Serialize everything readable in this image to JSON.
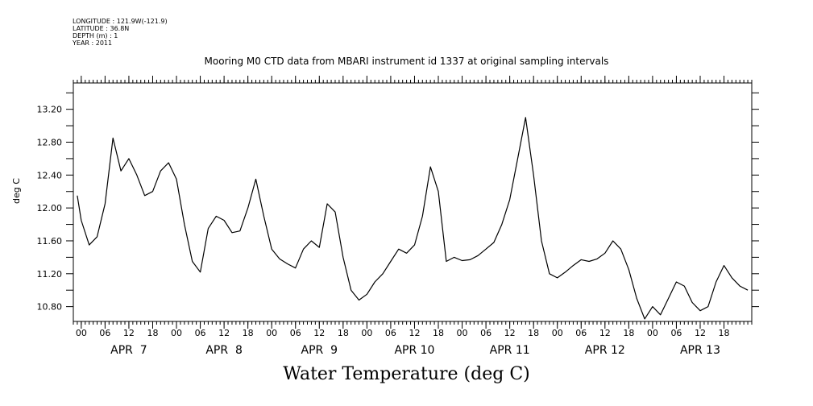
{
  "header": {
    "longitude": "LONGITUDE : 121.9W(-121.9)",
    "latitude": "LATITUDE : 36.8N",
    "depth": "DEPTH (m) : 1",
    "year": "YEAR : 2011"
  },
  "chart_data": {
    "type": "line",
    "title": "Mooring M0 CTD data from MBARI instrument id 1337 at original sampling intervals",
    "xlabel": "Water Temperature (deg C)",
    "ylabel": "deg C",
    "ylim": [
      10.62,
      13.52
    ],
    "yticks": [
      "10.80",
      "11.20",
      "11.60",
      "12.00",
      "12.40",
      "12.80",
      "13.20"
    ],
    "hour_ticks": [
      "00",
      "06",
      "12",
      "18",
      "00",
      "06",
      "12",
      "18",
      "00",
      "06",
      "12",
      "18",
      "00",
      "06",
      "12",
      "18",
      "00",
      "06",
      "12",
      "18",
      "00",
      "06",
      "12",
      "18",
      "00",
      "06",
      "12",
      "18"
    ],
    "day_labels": [
      "APR  7",
      "APR  8",
      "APR  9",
      "APR 10",
      "APR 11",
      "APR 12",
      "APR 13"
    ],
    "x_unit": "hours since 2011-04-07 00:00",
    "series": [
      {
        "x": [
          -1,
          0,
          2,
          4,
          6,
          8,
          10,
          12,
          14,
          16,
          18,
          20,
          22,
          24,
          26,
          28,
          30,
          32,
          34,
          36,
          38,
          40,
          42,
          44,
          46,
          48,
          50,
          52,
          54,
          56,
          58,
          60,
          62,
          64,
          66,
          68,
          70,
          72,
          74,
          76,
          78,
          80,
          82,
          84,
          86,
          88,
          90,
          92,
          94,
          96,
          98,
          100,
          102,
          104,
          106,
          108,
          110,
          112,
          114,
          116,
          118,
          120,
          122,
          124,
          126,
          128,
          130,
          132,
          134,
          136,
          138,
          140,
          142,
          144,
          146,
          148,
          150,
          152,
          154,
          156,
          158,
          160,
          162,
          164,
          166,
          168
        ],
        "y": [
          12.15,
          11.85,
          11.55,
          11.65,
          12.05,
          12.85,
          12.45,
          12.6,
          12.4,
          12.15,
          12.2,
          12.45,
          12.55,
          12.35,
          11.8,
          11.35,
          11.22,
          11.75,
          11.9,
          11.85,
          11.7,
          11.72,
          12.0,
          12.35,
          11.9,
          11.5,
          11.38,
          11.32,
          11.27,
          11.5,
          11.6,
          11.52,
          12.05,
          11.95,
          11.4,
          11.0,
          10.88,
          10.95,
          11.1,
          11.2,
          11.35,
          11.5,
          11.45,
          11.55,
          11.9,
          12.5,
          12.2,
          11.35,
          11.4,
          11.36,
          11.37,
          11.42,
          11.5,
          11.58,
          11.8,
          12.1,
          12.6,
          13.1,
          12.4,
          11.6,
          11.2,
          11.15,
          11.22,
          11.3,
          11.37,
          11.35,
          11.38,
          11.45,
          11.6,
          11.5,
          11.25,
          10.9,
          10.65,
          10.8,
          10.7,
          10.9,
          11.1,
          11.05,
          10.85,
          10.75,
          10.8,
          11.1,
          11.3,
          11.15,
          11.05,
          11.0
        ]
      }
    ]
  }
}
